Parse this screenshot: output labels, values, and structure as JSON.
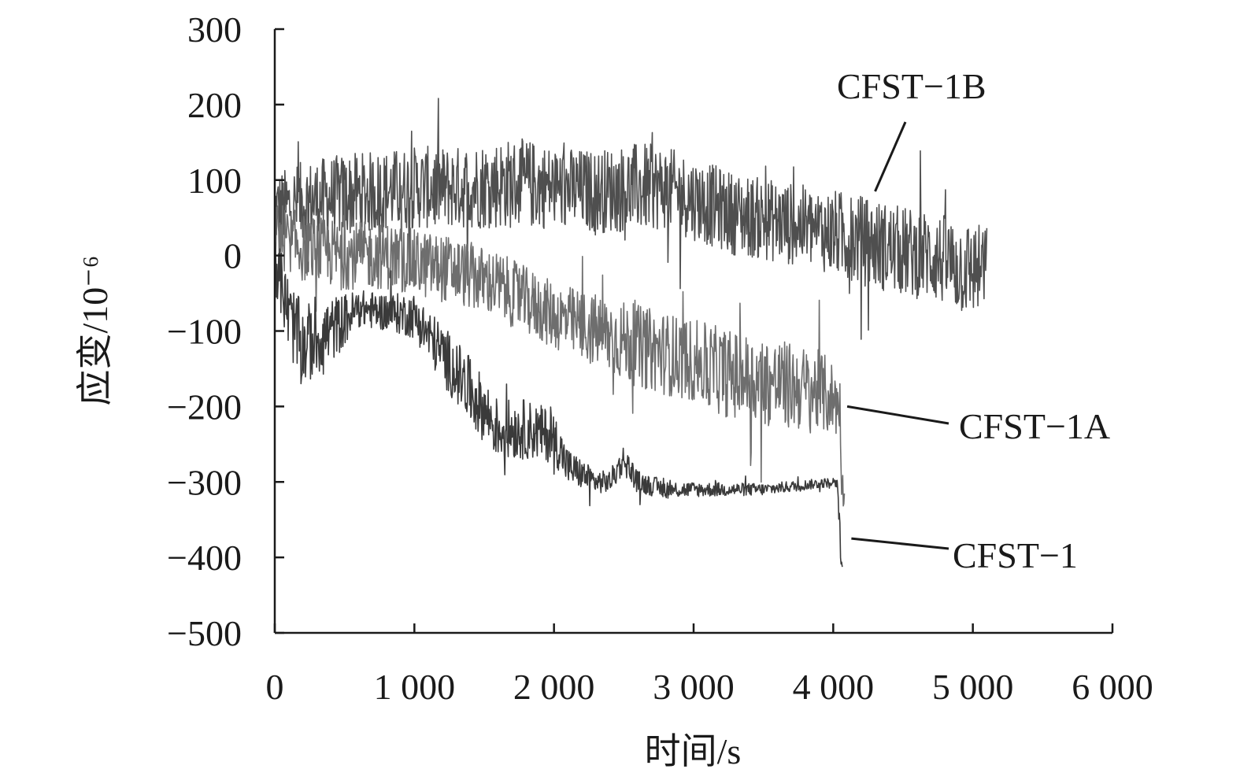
{
  "chart_data": {
    "type": "line",
    "title": "",
    "xlabel": "时间/s",
    "ylabel": "应变/10⁻⁶",
    "xlim": [
      0,
      6000
    ],
    "ylim": [
      -500,
      300
    ],
    "x_ticks": [
      0,
      1000,
      2000,
      3000,
      4000,
      5000,
      6000
    ],
    "x_tick_labels": [
      "0",
      "1 000",
      "2 000",
      "3 000",
      "4 000",
      "5 000",
      "6 000"
    ],
    "y_ticks": [
      300,
      200,
      100,
      0,
      -100,
      -200,
      -300,
      -400,
      -500
    ],
    "y_tick_labels": [
      "300",
      "200",
      "100",
      "0",
      "−100",
      "−200",
      "−300",
      "−400",
      "−500"
    ],
    "grid": false,
    "legend": "none",
    "series": [
      {
        "name": "CFST−1B",
        "color": "#4f4f4f",
        "x": [
          0,
          200,
          500,
          800,
          1000,
          1300,
          1600,
          1800,
          2000,
          2300,
          2600,
          2800,
          3000,
          3300,
          3600,
          3900,
          4100,
          4300,
          4500,
          4700,
          4900,
          5100
        ],
        "y_mid": [
          60,
          70,
          80,
          85,
          90,
          90,
          95,
          95,
          90,
          85,
          90,
          90,
          75,
          55,
          45,
          35,
          25,
          15,
          5,
          0,
          -15,
          -20
        ],
        "y_amp": [
          50,
          55,
          55,
          55,
          55,
          55,
          60,
          60,
          55,
          55,
          60,
          55,
          55,
          55,
          55,
          55,
          60,
          60,
          60,
          60,
          65,
          60
        ]
      },
      {
        "name": "CFST−1A",
        "color": "#6e6e6e",
        "x": [
          0,
          200,
          500,
          800,
          1000,
          1300,
          1600,
          1800,
          2000,
          2300,
          2600,
          2800,
          3000,
          3300,
          3600,
          3900,
          4000,
          4050,
          4060,
          4080
        ],
        "y_mid": [
          30,
          10,
          0,
          0,
          -10,
          -20,
          -40,
          -60,
          -80,
          -100,
          -120,
          -130,
          -140,
          -160,
          -170,
          -180,
          -190,
          -200,
          -300,
          -320
        ],
        "y_amp": [
          45,
          45,
          45,
          45,
          45,
          45,
          45,
          45,
          45,
          50,
          55,
          55,
          55,
          60,
          60,
          55,
          50,
          40,
          20,
          20
        ]
      },
      {
        "name": "CFST−1",
        "color": "#3a3a3a",
        "x": [
          0,
          100,
          200,
          300,
          400,
          600,
          800,
          1000,
          1200,
          1400,
          1600,
          1800,
          2000,
          2100,
          2300,
          2400,
          2500,
          2600,
          2800,
          3000,
          3500,
          4000,
          4030,
          4050,
          4070
        ],
        "y_mid": [
          0,
          -80,
          -120,
          -110,
          -100,
          -70,
          -75,
          -80,
          -130,
          -180,
          -230,
          -230,
          -240,
          -280,
          -300,
          -300,
          -270,
          -300,
          -310,
          -310,
          -310,
          -300,
          -300,
          -380,
          -420
        ],
        "y_amp": [
          45,
          50,
          55,
          50,
          45,
          25,
          25,
          30,
          40,
          45,
          40,
          40,
          35,
          25,
          15,
          15,
          20,
          15,
          12,
          10,
          8,
          6,
          10,
          20,
          10
        ]
      }
    ],
    "annotations": [
      {
        "text": "CFST−1B",
        "series": "CFST−1B",
        "at": [
          4300,
          85
        ]
      },
      {
        "text": "CFST−1A",
        "series": "CFST−1A",
        "at": [
          4100,
          -200
        ]
      },
      {
        "text": "CFST−1",
        "series": "CFST−1",
        "at": [
          4130,
          -375
        ]
      }
    ]
  }
}
